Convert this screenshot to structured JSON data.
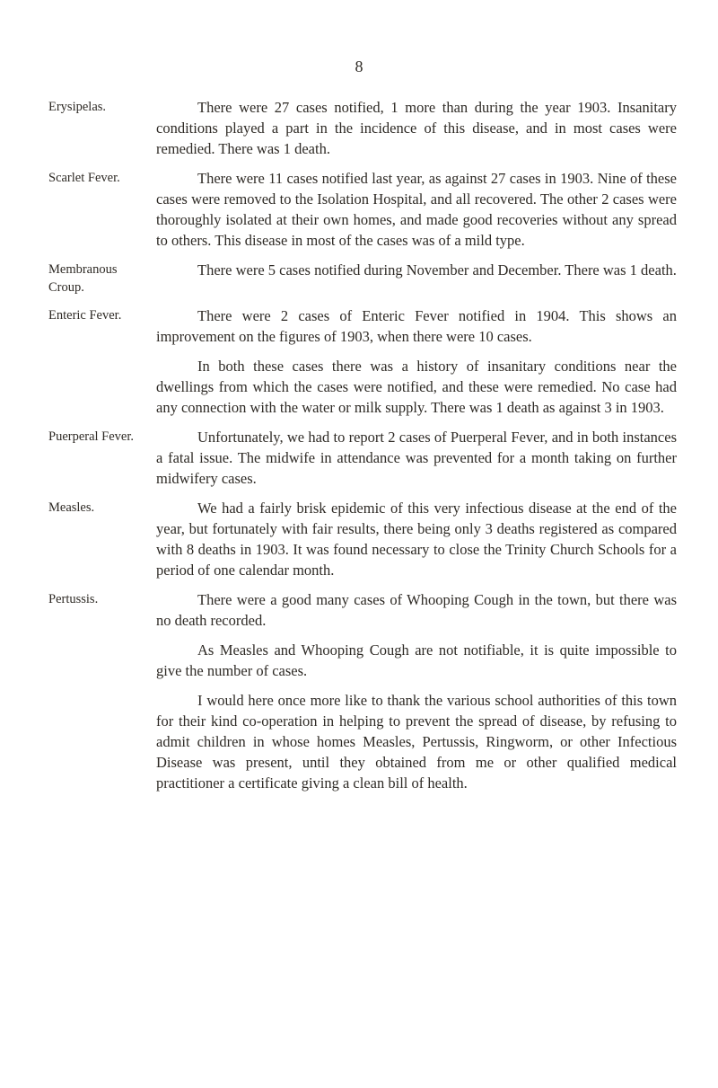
{
  "page_number": "8",
  "entries": [
    {
      "label": "Erysipelas.",
      "paragraphs": [
        "There were 27 cases notified, 1 more than during the year 1903. Insanitary conditions played a part in the incidence of this disease, and in most cases were remedied. There was 1 death."
      ]
    },
    {
      "label": "Scarlet Fever.",
      "paragraphs": [
        "There were 11 cases notified last year, as against 27 cases in 1903. Nine of these cases were removed to the Isolation Hospital, and all recovered. The other 2 cases were thoroughly isolated at their own homes, and made good recoveries without any spread to others. This disease in most of the cases was of a mild type."
      ]
    },
    {
      "label": "Membranous Croup.",
      "paragraphs": [
        "There were 5 cases notified during November and December. There was 1 death."
      ]
    },
    {
      "label": "Enteric Fever.",
      "paragraphs": [
        "There were 2 cases of Enteric Fever notified in 1904. This shows an improvement on the figures of 1903, when there were 10 cases.",
        "In both these cases there was a history of insanitary conditions near the dwellings from which the cases were notified, and these were remedied. No case had any connection with the water or milk supply. There was 1 death as against 3 in 1903."
      ]
    },
    {
      "label": "Puerperal Fever.",
      "paragraphs": [
        "Unfortunately, we had to report 2 cases of Puerperal Fever, and in both instances a fatal issue. The midwife in attendance was prevented for a month taking on further midwifery cases."
      ]
    },
    {
      "label": "Measles.",
      "paragraphs": [
        "We had a fairly brisk epidemic of this very infectious disease at the end of the year, but fortunately with fair results, there being only 3 deaths registered as compared with 8 deaths in 1903. It was found necessary to close the Trinity Church Schools for a period of one calendar month."
      ]
    },
    {
      "label": "Pertussis.",
      "paragraphs": [
        "There were a good many cases of Whooping Cough in the town, but there was no death recorded.",
        "As Measles and Whooping Cough are not notifiable, it is quite impossible to give the number of cases.",
        "I would here once more like to thank the various school authorities of this town for their kind co-operation in helping to prevent the spread of disease, by refusing to admit children in whose homes Measles, Pertussis, Ringworm, or other Infectious Disease was present, until they obtained from me or other qualified medical practitioner a certificate giving a clean bill of health."
      ]
    }
  ]
}
